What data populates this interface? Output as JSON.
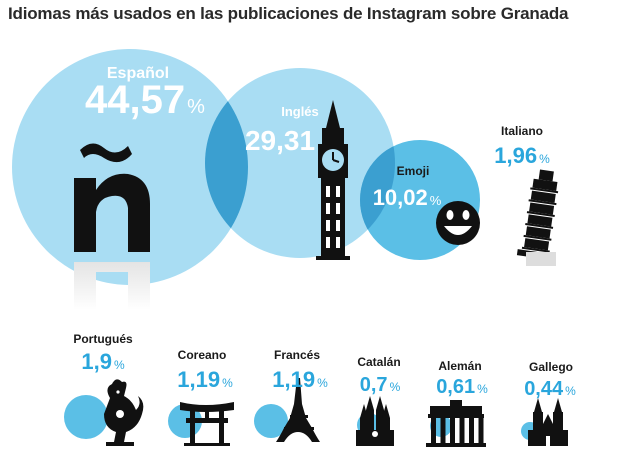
{
  "title": "Idiomas más usados en las publicaciones de Instagram sobre Granada",
  "colors": {
    "bubble": "#5bbfe6",
    "bubble_light": "#a9ddf3",
    "overlap": "#3b9fd0",
    "text_white": "#ffffff",
    "value_blue": "#2aa6dc",
    "label_dark": "#1a1a1a",
    "silhouette": "#111111"
  },
  "chart_data": {
    "type": "bubble",
    "title": "Idiomas más usados en las publicaciones de Instagram sobre Granada",
    "unit": "%",
    "series": [
      {
        "name": "Español",
        "value": 44.57,
        "value_label": "44,57",
        "icon": "enye-letter-icon"
      },
      {
        "name": "Inglés",
        "value": 29.31,
        "value_label": "29,31",
        "icon": "big-ben-icon"
      },
      {
        "name": "Emoji",
        "value": 10.02,
        "value_label": "10,02",
        "icon": "smiley-face-icon"
      },
      {
        "name": "Italiano",
        "value": 1.96,
        "value_label": "1,96",
        "icon": "leaning-tower-pisa-icon"
      },
      {
        "name": "Portugués",
        "value": 1.9,
        "value_label": "1,9",
        "icon": "barcelos-rooster-icon"
      },
      {
        "name": "Coreano",
        "value": 1.19,
        "value_label": "1,19",
        "icon": "torii-gate-icon"
      },
      {
        "name": "Francés",
        "value": 1.19,
        "value_label": "1,19",
        "icon": "eiffel-tower-icon"
      },
      {
        "name": "Catalán",
        "value": 0.7,
        "value_label": "0,7",
        "icon": "sagrada-familia-icon"
      },
      {
        "name": "Alemán",
        "value": 0.61,
        "value_label": "0,61",
        "icon": "brandenburg-gate-icon"
      },
      {
        "name": "Gallego",
        "value": 0.44,
        "value_label": "0,44",
        "icon": "santiago-cathedral-icon"
      }
    ]
  }
}
